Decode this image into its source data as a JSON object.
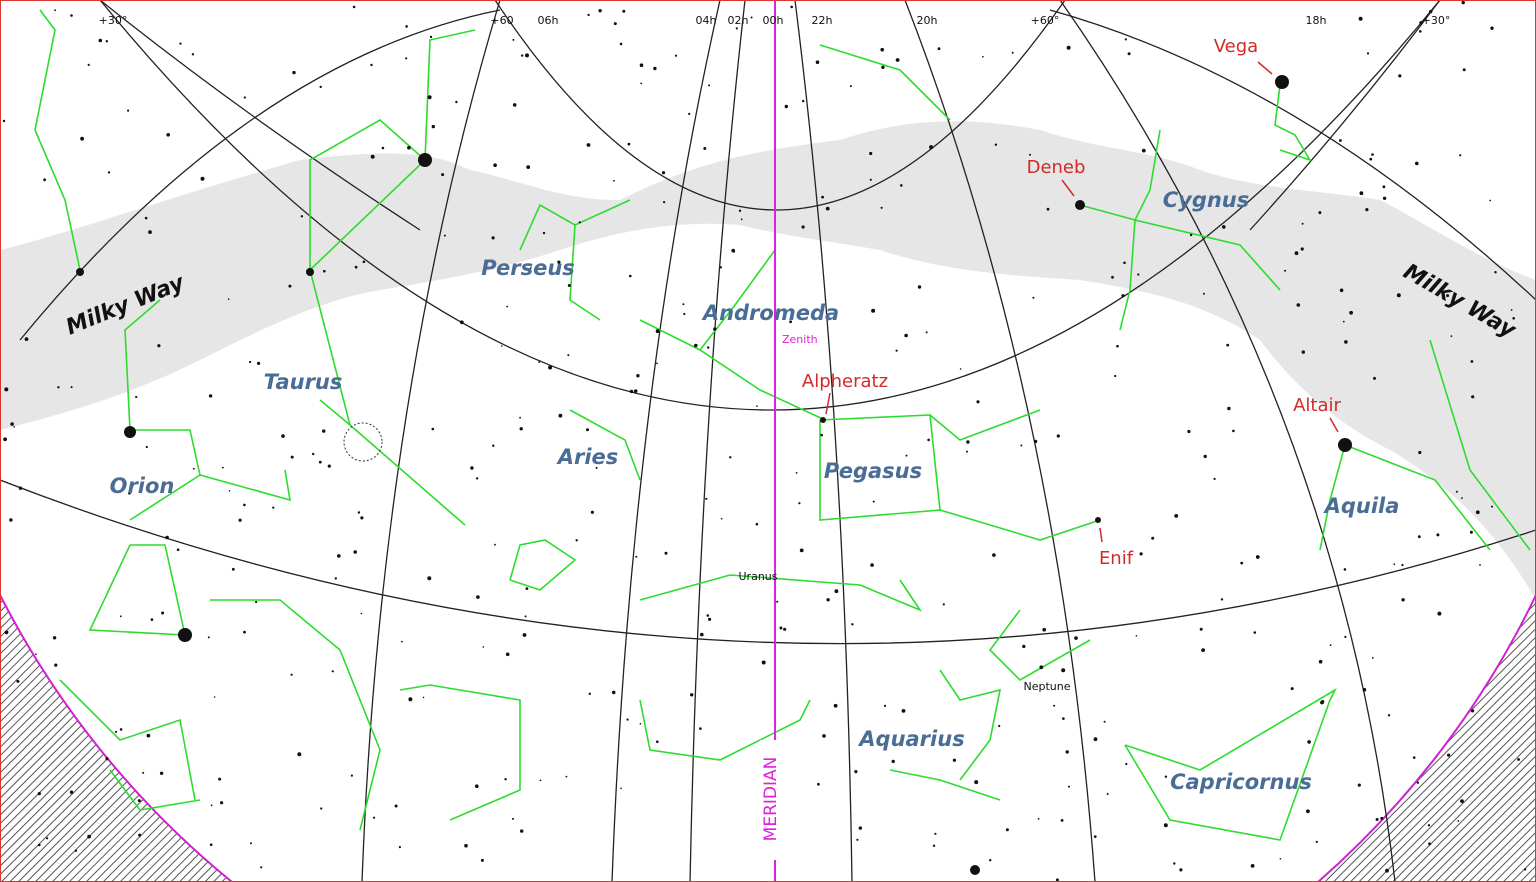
{
  "grid_labels": [
    "+30°",
    "+60",
    "06h",
    "04h",
    "02h",
    "00h",
    "22h",
    "20h",
    "+60°",
    "18h",
    "+30°"
  ],
  "milky_way": [
    "Milky Way",
    "Milky Way"
  ],
  "constellations": [
    "Perseus",
    "Andromeda",
    "Taurus",
    "Aries",
    "Orion",
    "Pegasus",
    "Cygnus",
    "Aquila",
    "Aquarius",
    "Capricornus"
  ],
  "stars": [
    "Vega",
    "Deneb",
    "Alpheratz",
    "Altair",
    "Enif"
  ],
  "planets": [
    "Uranus",
    "Neptune"
  ],
  "markers": {
    "zenith": "Zenith",
    "meridian": "MERIDIAN"
  }
}
